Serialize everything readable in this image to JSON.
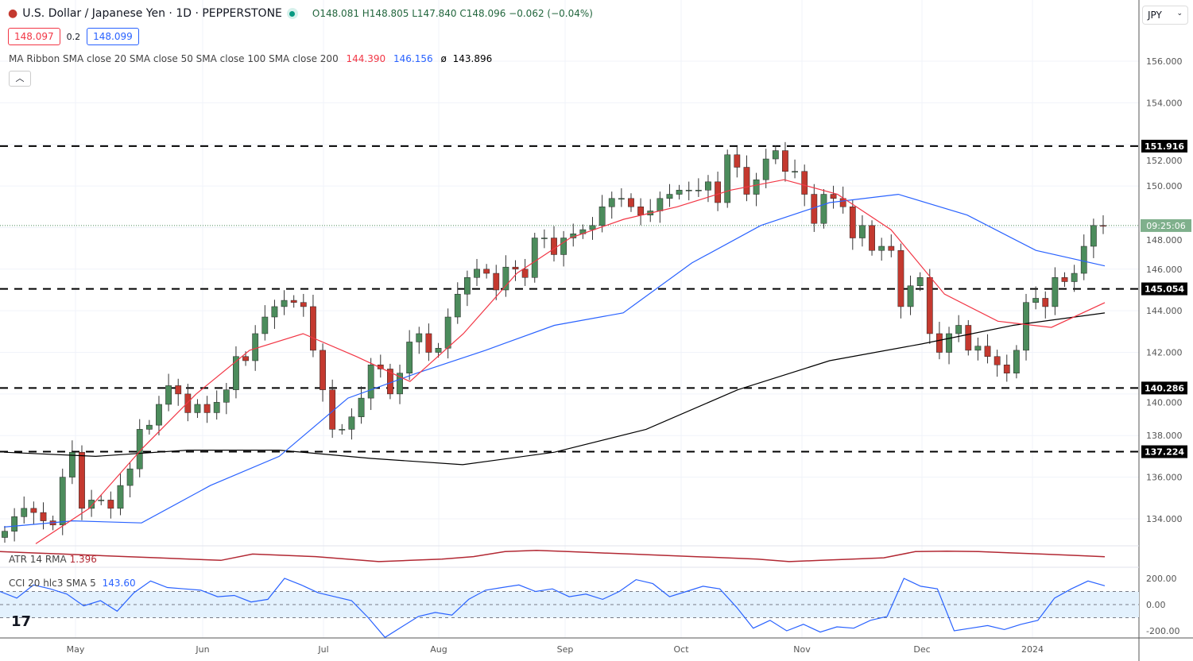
{
  "header": {
    "symbol": "U.S. Dollar / Japanese Yen · 1D · PEPPERSTONE",
    "ohlc": "O148.081 H148.805 L147.840 C148.096 −0.062 (−0.04%)",
    "bid": "148.097",
    "spread": "0.2",
    "ask": "148.099",
    "currency": "JPY",
    "collapse_icon": "chevron-up-icon"
  },
  "ma_legend": {
    "label": "MA Ribbon SMA close 20 SMA close 50 SMA close 100 SMA close 200",
    "v20": "144.390",
    "v50": "146.156",
    "v100": "ø",
    "v200": "143.896"
  },
  "atr_legend": {
    "label": "ATR 14 RMA",
    "value": "1.396"
  },
  "cci_legend": {
    "label": "CCI 20 hlc3 SMA 5",
    "value": "143.60"
  },
  "colors": {
    "up": "#4c8c5c",
    "down": "#c4392f",
    "sma20": "#f23645",
    "sma50": "#2962ff",
    "sma200": "#000000",
    "atr": "#b22833",
    "cci": "#2962ff",
    "band": "#e3f1fd"
  },
  "chart_data": {
    "type": "candlestick",
    "y_axis": {
      "ticks": [
        134,
        136,
        138,
        140,
        142,
        144,
        146,
        148,
        150,
        152,
        154,
        156
      ],
      "range": [
        132.5,
        157
      ]
    },
    "x_axis": {
      "ticks": [
        "May",
        "Jun",
        "Jul",
        "Aug",
        "Sep",
        "Oct",
        "Nov",
        "Dec",
        "2024"
      ]
    },
    "closes": [
      133.4,
      134.1,
      134.5,
      134.3,
      133.9,
      133.7,
      136.0,
      137.2,
      134.5,
      134.9,
      134.9,
      134.5,
      135.6,
      136.4,
      138.3,
      138.5,
      139.5,
      140.4,
      140.0,
      139.1,
      139.5,
      139.1,
      139.6,
      140.2,
      141.8,
      141.6,
      142.9,
      143.7,
      144.2,
      144.5,
      144.4,
      144.2,
      142.1,
      140.2,
      138.3,
      138.3,
      138.9,
      139.8,
      141.4,
      141.2,
      140.0,
      141.0,
      142.5,
      142.9,
      142.0,
      142.2,
      143.7,
      144.8,
      145.6,
      146.0,
      145.8,
      145.0,
      146.1,
      146.0,
      145.6,
      147.5,
      147.5,
      146.7,
      147.5,
      147.7,
      147.9,
      148.1,
      149.0,
      149.4,
      149.4,
      149.0,
      148.6,
      148.8,
      149.4,
      149.6,
      149.8,
      149.8,
      149.8,
      150.2,
      149.2,
      151.5,
      150.9,
      149.6,
      150.3,
      151.3,
      151.7,
      150.7,
      150.7,
      149.6,
      148.2,
      149.6,
      149.4,
      149.0,
      147.5,
      148.1,
      146.9,
      147.1,
      146.9,
      144.2,
      145.2,
      145.6,
      142.9,
      142.0,
      142.9,
      143.3,
      142.1,
      142.3,
      141.8,
      141.4,
      141.0,
      142.1,
      144.4,
      144.6,
      144.2,
      145.6,
      145.4,
      145.8,
      147.1,
      148.1,
      148.096
    ],
    "sma20": [
      132.8,
      134.5,
      137.4,
      140.0,
      142.1,
      142.9,
      141.8,
      140.6,
      142.9,
      145.8,
      147.5,
      148.4,
      149.0,
      149.8,
      150.3,
      149.6,
      147.9,
      144.8,
      143.5,
      143.2,
      144.39
    ],
    "sma50": [
      133.6,
      133.9,
      133.8,
      135.6,
      137.0,
      139.8,
      141.0,
      142.1,
      143.3,
      143.9,
      146.3,
      148.1,
      149.2,
      149.6,
      148.6,
      146.9,
      146.156
    ],
    "sma200": [
      137.2,
      137.0,
      137.3,
      137.3,
      136.9,
      136.6,
      137.2,
      138.3,
      140.2,
      141.6,
      142.4,
      143.3,
      143.896
    ],
    "levels": [
      151.916,
      145.054,
      140.286,
      137.224
    ],
    "last_price": 148.096,
    "countdown": "09:25:06",
    "atr": [
      1.6,
      1.55,
      1.5,
      1.45,
      1.4,
      1.35,
      1.3,
      1.25,
      1.5,
      1.45,
      1.4,
      1.3,
      1.2,
      1.25,
      1.3,
      1.4,
      1.6,
      1.65,
      1.6,
      1.55,
      1.5,
      1.45,
      1.4,
      1.35,
      1.3,
      1.2,
      1.25,
      1.3,
      1.35,
      1.6,
      1.62,
      1.6,
      1.55,
      1.5,
      1.45,
      1.396
    ],
    "atr_range": [
      1.1,
      1.8
    ],
    "cci": [
      100,
      50,
      150,
      120,
      80,
      -10,
      30,
      -50,
      90,
      180,
      130,
      120,
      110,
      60,
      70,
      20,
      40,
      200,
      150,
      90,
      60,
      30,
      -100,
      -250,
      -170,
      -90,
      -60,
      -80,
      40,
      110,
      130,
      150,
      100,
      120,
      60,
      80,
      40,
      100,
      190,
      160,
      60,
      100,
      140,
      120,
      -20,
      -180,
      -120,
      -200,
      -150,
      -210,
      -170,
      -180,
      -120,
      -90,
      200,
      140,
      120,
      -200,
      -180,
      -160,
      -190,
      -150,
      -120,
      50,
      120,
      180,
      143.6
    ],
    "cci_ticks": [
      "200.00",
      "0.00",
      "-200.00"
    ]
  }
}
